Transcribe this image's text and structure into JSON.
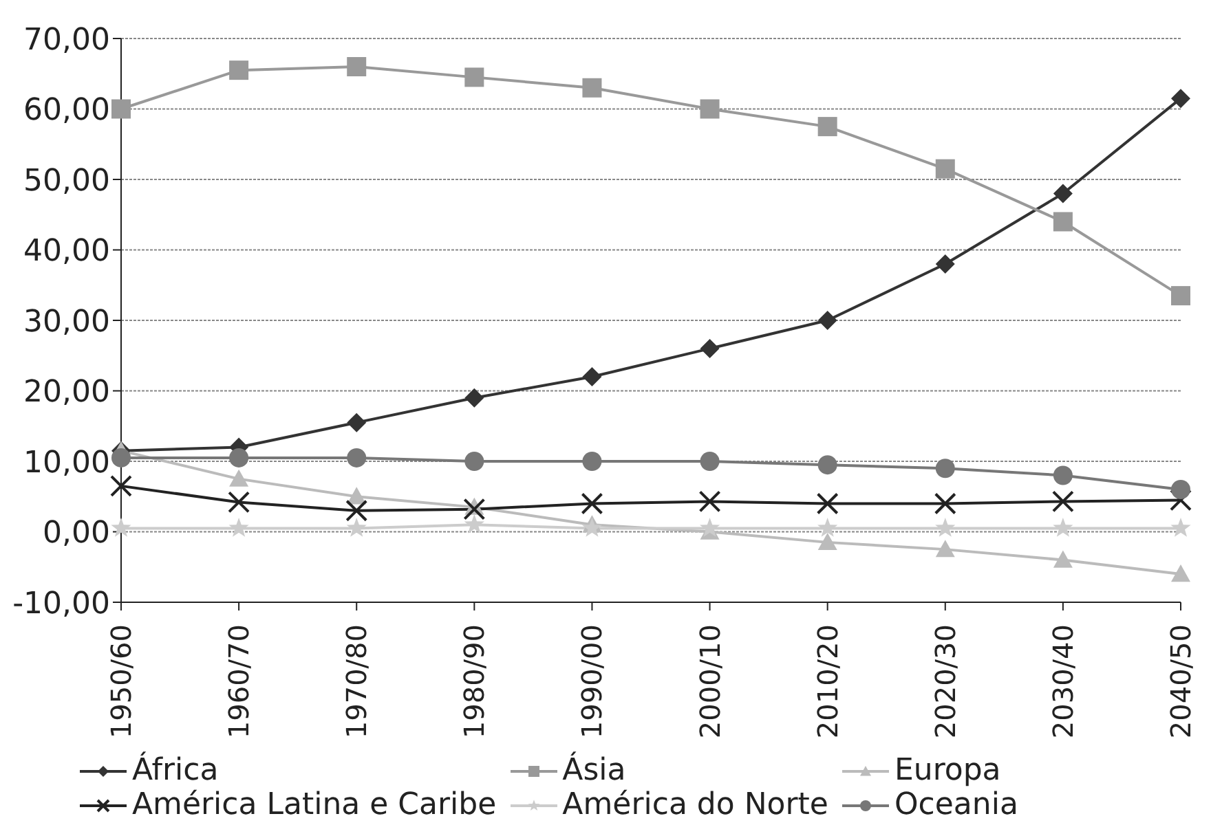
{
  "chart_data": {
    "type": "line",
    "categories": [
      "1950/60",
      "1960/70",
      "1970/80",
      "1980/90",
      "1990/00",
      "2000/10",
      "2010/20",
      "2020/30",
      "2030/40",
      "2040/50"
    ],
    "series": [
      {
        "name": "África",
        "color": "#333333",
        "marker": "diamond",
        "values": [
          11.5,
          12,
          15.5,
          19,
          22,
          26,
          30,
          38,
          48,
          61.5
        ]
      },
      {
        "name": "Ásia",
        "color": "#999999",
        "marker": "square",
        "values": [
          60,
          65.5,
          66,
          64.5,
          63,
          60,
          57.5,
          51.5,
          44,
          33.5
        ]
      },
      {
        "name": "Europa",
        "color": "#bbbbbb",
        "marker": "triangle",
        "values": [
          11.5,
          7.5,
          5,
          3.5,
          1,
          0,
          -1.5,
          -2.5,
          -4,
          -6
        ]
      },
      {
        "name": "América Latina e Caribe",
        "color": "#222222",
        "marker": "cross",
        "values": [
          6.5,
          4.2,
          3,
          3.2,
          4,
          4.3,
          4,
          4,
          4.3,
          4.5
        ]
      },
      {
        "name": "América do Norte",
        "color": "#cccccc",
        "marker": "star",
        "values": [
          0.5,
          0.5,
          0.5,
          1,
          0.5,
          0.5,
          0.5,
          0.5,
          0.5,
          0.5
        ]
      },
      {
        "name": "Oceania",
        "color": "#777777",
        "marker": "circle",
        "values": [
          10.5,
          10.5,
          10.5,
          10,
          10,
          10,
          9.5,
          9,
          8,
          6
        ]
      }
    ],
    "ylim": [
      -10,
      70
    ],
    "yticks": [
      {
        "value": -10,
        "label": "-10,00"
      },
      {
        "value": 0,
        "label": "0,00"
      },
      {
        "value": 10,
        "label": "10,00"
      },
      {
        "value": 20,
        "label": "20,00"
      },
      {
        "value": 30,
        "label": "30,00"
      },
      {
        "value": 40,
        "label": "40,00"
      },
      {
        "value": 50,
        "label": "50,00"
      },
      {
        "value": 60,
        "label": "60,00"
      },
      {
        "value": 70,
        "label": "70,00"
      }
    ],
    "grid": "y",
    "legend": "bottom",
    "line_style": "solid"
  }
}
